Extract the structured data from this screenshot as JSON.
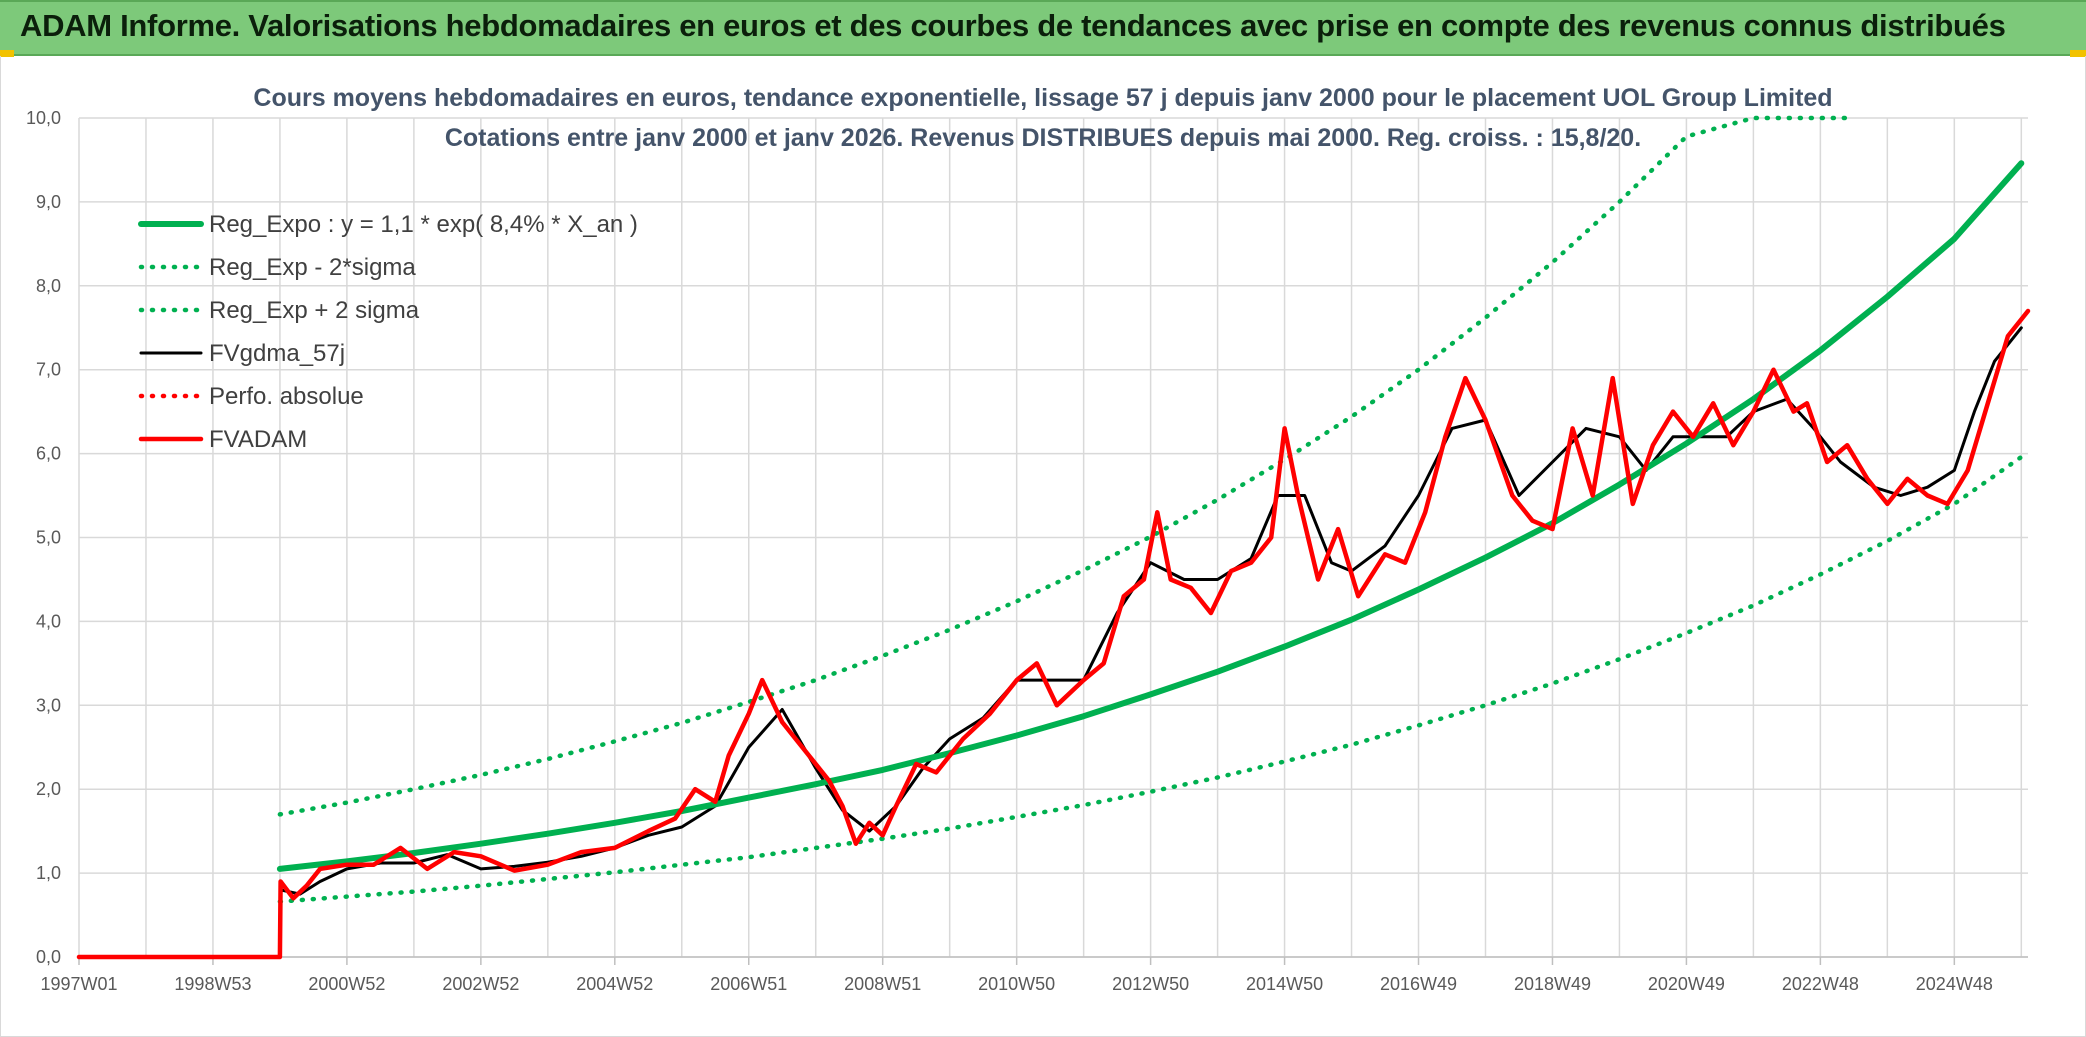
{
  "banner": {
    "title": "ADAM Informe. Valorisations hebdomadaires en euros et des courbes de tendances avec prise en compte des revenus connus distribués"
  },
  "colors": {
    "banner_bg": "#7dc97a",
    "corner_accent": "#f2c200",
    "reg_expo": "#00b050",
    "fvgdma": "#000000",
    "fvadam": "#ff0000",
    "perfo": "#ff0000",
    "grid": "#d9d9d9"
  },
  "chart_data": {
    "type": "line",
    "title": "Cours moyens hebdomadaires en euros, tendance exponentielle, lissage 57 j depuis janv 2000 pour le placement UOL Group Limited",
    "subtitle": "Cotations entre janv 2000 et janv 2026. Revenus DISTRIBUES depuis mai 2000. Reg. croiss. : 15,8/20.",
    "xlabel": "",
    "ylabel": "",
    "ylim": [
      0,
      10
    ],
    "y_ticks": [
      "0,0",
      "1,0",
      "2,0",
      "3,0",
      "4,0",
      "5,0",
      "6,0",
      "7,0",
      "8,0",
      "9,0",
      "10,0"
    ],
    "x_ticks": [
      {
        "label": "1997W01",
        "x": 1997.0
      },
      {
        "label": "1998W53",
        "x": 1999.0
      },
      {
        "label": "2000W52",
        "x": 2001.0
      },
      {
        "label": "2002W52",
        "x": 2003.0
      },
      {
        "label": "2004W52",
        "x": 2005.0
      },
      {
        "label": "2006W51",
        "x": 2007.0
      },
      {
        "label": "2008W51",
        "x": 2009.0
      },
      {
        "label": "2010W50",
        "x": 2011.0
      },
      {
        "label": "2012W50",
        "x": 2013.0
      },
      {
        "label": "2014W50",
        "x": 2015.0
      },
      {
        "label": "2016W49",
        "x": 2017.0
      },
      {
        "label": "2018W49",
        "x": 2019.0
      },
      {
        "label": "2020W49",
        "x": 2021.0
      },
      {
        "label": "2022W48",
        "x": 2023.0
      },
      {
        "label": "2024W48",
        "x": 2025.0
      }
    ],
    "xlim": [
      1997.0,
      2026.1
    ],
    "grid": true,
    "legend_position": "top-left",
    "series": [
      {
        "name": "Reg_Expo : y = 1,1 * exp( 8,4% *  X_an )",
        "style": "solid-thick",
        "color": "#00b050",
        "x": [
          2000.0,
          2001.0,
          2002.0,
          2003.0,
          2004.0,
          2005.0,
          2006.0,
          2007.0,
          2008.0,
          2009.0,
          2010.0,
          2011.0,
          2012.0,
          2013.0,
          2014.0,
          2015.0,
          2016.0,
          2017.0,
          2018.0,
          2019.0,
          2020.0,
          2021.0,
          2022.0,
          2023.0,
          2024.0,
          2025.0,
          2026.0
        ],
        "values": [
          1.05,
          1.14,
          1.24,
          1.35,
          1.47,
          1.6,
          1.74,
          1.9,
          2.06,
          2.23,
          2.43,
          2.64,
          2.87,
          3.13,
          3.4,
          3.7,
          4.02,
          4.38,
          4.76,
          5.17,
          5.63,
          6.12,
          6.65,
          7.23,
          7.87,
          8.56,
          9.46
        ]
      },
      {
        "name": "Reg_Exp - 2*sigma",
        "style": "dotted",
        "color": "#00b050",
        "x": [
          2000.0,
          2001.0,
          2002.0,
          2003.0,
          2004.0,
          2005.0,
          2006.0,
          2007.0,
          2008.0,
          2009.0,
          2010.0,
          2011.0,
          2012.0,
          2013.0,
          2014.0,
          2015.0,
          2016.0,
          2017.0,
          2018.0,
          2019.0,
          2020.0,
          2021.0,
          2022.0,
          2023.0,
          2024.0,
          2025.0,
          2026.0
        ],
        "values": [
          0.66,
          0.72,
          0.78,
          0.85,
          0.93,
          1.01,
          1.1,
          1.19,
          1.3,
          1.41,
          1.53,
          1.67,
          1.81,
          1.97,
          2.14,
          2.33,
          2.53,
          2.76,
          3.0,
          3.26,
          3.55,
          3.86,
          4.19,
          4.56,
          4.96,
          5.4,
          5.96
        ]
      },
      {
        "name": "Reg_Exp + 2 sigma",
        "style": "dotted",
        "color": "#00b050",
        "x": [
          2000.0,
          2001.0,
          2002.0,
          2003.0,
          2004.0,
          2005.0,
          2006.0,
          2007.0,
          2008.0,
          2009.0,
          2010.0,
          2011.0,
          2012.0,
          2013.0,
          2014.0,
          2015.0,
          2016.0,
          2017.0,
          2018.0,
          2019.0,
          2020.0,
          2021.0,
          2022.0,
          2023.0,
          2023.4
        ],
        "values": [
          1.7,
          1.84,
          2.0,
          2.17,
          2.36,
          2.57,
          2.79,
          3.04,
          3.3,
          3.59,
          3.9,
          4.24,
          4.61,
          5.01,
          5.45,
          5.93,
          6.44,
          7.0,
          7.62,
          8.28,
          9.0,
          9.78,
          10.0,
          10.0,
          10.0
        ]
      },
      {
        "name": "FVgdma_57j",
        "style": "solid",
        "color": "#000000",
        "x": [
          1997.0,
          2000.0,
          2000.01,
          2000.3,
          2000.6,
          2001.0,
          2001.5,
          2002.0,
          2002.5,
          2003.0,
          2003.5,
          2004.0,
          2004.5,
          2005.0,
          2005.5,
          2006.0,
          2006.5,
          2007.0,
          2007.5,
          2008.0,
          2008.4,
          2008.8,
          2009.2,
          2009.6,
          2010.0,
          2010.5,
          2011.0,
          2011.5,
          2012.0,
          2012.5,
          2013.0,
          2013.5,
          2014.0,
          2014.5,
          2014.9,
          2015.3,
          2015.7,
          2016.0,
          2016.5,
          2017.0,
          2017.5,
          2018.0,
          2018.5,
          2019.0,
          2019.5,
          2020.0,
          2020.4,
          2020.8,
          2021.2,
          2021.6,
          2022.0,
          2022.5,
          2022.9,
          2023.3,
          2023.8,
          2024.2,
          2024.6,
          2025.0,
          2025.3,
          2025.6,
          2026.0
        ],
        "values": [
          0.0,
          0.0,
          0.8,
          0.75,
          0.9,
          1.05,
          1.12,
          1.12,
          1.22,
          1.05,
          1.08,
          1.13,
          1.2,
          1.3,
          1.45,
          1.55,
          1.8,
          2.5,
          2.95,
          2.25,
          1.75,
          1.5,
          1.8,
          2.25,
          2.6,
          2.85,
          3.3,
          3.3,
          3.3,
          4.1,
          4.7,
          4.5,
          4.5,
          4.75,
          5.5,
          5.5,
          4.7,
          4.6,
          4.9,
          5.5,
          6.3,
          6.4,
          5.5,
          5.9,
          6.3,
          6.2,
          5.8,
          6.2,
          6.2,
          6.2,
          6.5,
          6.65,
          6.3,
          5.9,
          5.6,
          5.5,
          5.6,
          5.8,
          6.5,
          7.1,
          7.5
        ]
      },
      {
        "name": "Perfo. absolue",
        "style": "dotted",
        "color": "#ff0000",
        "x": [],
        "values": []
      },
      {
        "name": "FVADAM",
        "style": "solid-thick",
        "color": "#ff0000",
        "x": [
          1997.0,
          2000.0,
          2000.01,
          2000.2,
          2000.4,
          2000.6,
          2001.0,
          2001.4,
          2001.8,
          2002.2,
          2002.6,
          2003.0,
          2003.5,
          2004.0,
          2004.5,
          2005.0,
          2005.5,
          2005.9,
          2006.2,
          2006.5,
          2006.7,
          2007.0,
          2007.2,
          2007.5,
          2007.9,
          2008.2,
          2008.4,
          2008.6,
          2008.8,
          2009.0,
          2009.2,
          2009.5,
          2009.8,
          2010.2,
          2010.6,
          2011.0,
          2011.3,
          2011.6,
          2012.0,
          2012.3,
          2012.6,
          2012.9,
          2013.1,
          2013.3,
          2013.6,
          2013.9,
          2014.2,
          2014.5,
          2014.8,
          2015.0,
          2015.2,
          2015.5,
          2015.8,
          2016.1,
          2016.5,
          2016.8,
          2017.1,
          2017.4,
          2017.7,
          2018.0,
          2018.4,
          2018.7,
          2019.0,
          2019.3,
          2019.6,
          2019.9,
          2020.2,
          2020.5,
          2020.8,
          2021.1,
          2021.4,
          2021.7,
          2022.0,
          2022.3,
          2022.6,
          2022.8,
          2023.1,
          2023.4,
          2023.7,
          2024.0,
          2024.3,
          2024.6,
          2024.9,
          2025.2,
          2025.5,
          2025.8,
          2026.1
        ],
        "values": [
          0.0,
          0.0,
          0.9,
          0.7,
          0.85,
          1.05,
          1.1,
          1.1,
          1.3,
          1.05,
          1.25,
          1.2,
          1.03,
          1.1,
          1.25,
          1.3,
          1.5,
          1.65,
          2.0,
          1.85,
          2.4,
          2.9,
          3.3,
          2.8,
          2.4,
          2.1,
          1.8,
          1.35,
          1.6,
          1.45,
          1.8,
          2.3,
          2.2,
          2.6,
          2.9,
          3.3,
          3.5,
          3.0,
          3.3,
          3.5,
          4.3,
          4.5,
          5.3,
          4.5,
          4.4,
          4.1,
          4.6,
          4.7,
          5.0,
          6.3,
          5.5,
          4.5,
          5.1,
          4.3,
          4.8,
          4.7,
          5.3,
          6.2,
          6.9,
          6.4,
          5.5,
          5.2,
          5.1,
          6.3,
          5.5,
          6.9,
          5.4,
          6.1,
          6.5,
          6.2,
          6.6,
          6.1,
          6.5,
          7.0,
          6.5,
          6.6,
          5.9,
          6.1,
          5.7,
          5.4,
          5.7,
          5.5,
          5.4,
          5.8,
          6.6,
          7.4,
          7.7
        ]
      }
    ]
  }
}
